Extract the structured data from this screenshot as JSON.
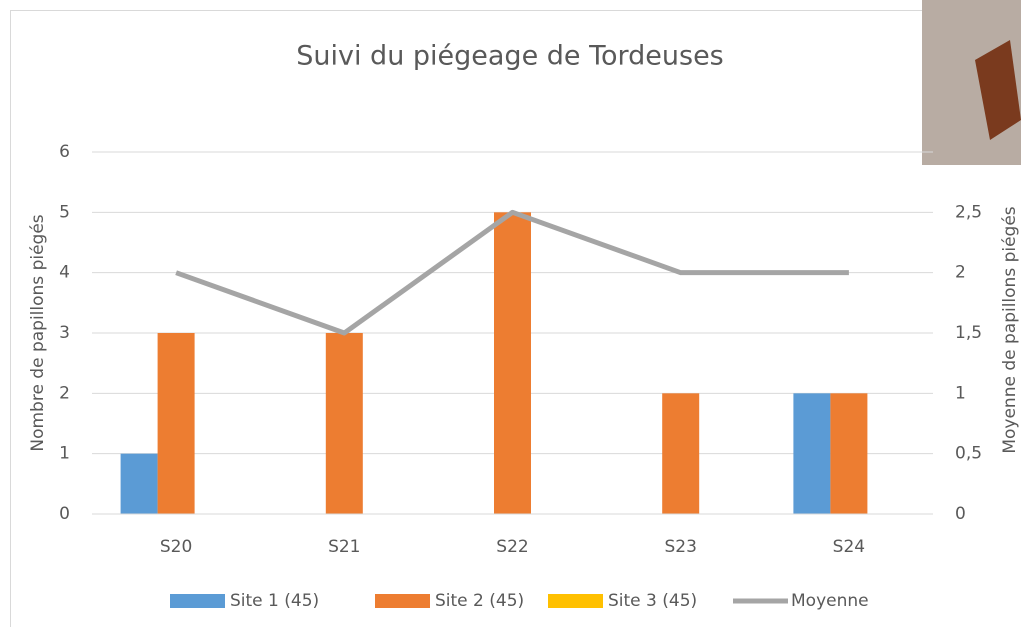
{
  "chart_data": {
    "type": "bar",
    "title": "Suivi du piégeage de Tordeuses",
    "y_label": "Nombre de papillons piégés",
    "y2_label": "Moyenne de papillons piégés",
    "categories": [
      "S20",
      "S21",
      "S22",
      "S23",
      "S24"
    ],
    "series": [
      {
        "name": "Site 1 (45)",
        "color": "#5b9bd5",
        "values": [
          1,
          0,
          0,
          0,
          2
        ]
      },
      {
        "name": "Site 2 (45)",
        "color": "#ed7d31",
        "values": [
          3,
          3,
          5,
          2,
          2
        ]
      },
      {
        "name": "Site 3 (45)",
        "color": "#ffc000",
        "values": [
          0,
          0,
          0,
          0,
          0
        ]
      },
      {
        "name": "Moyenne",
        "color": "#a5a5a5",
        "type": "line",
        "axis": "y2",
        "values": [
          2,
          1.5,
          2.5,
          2,
          2
        ]
      }
    ],
    "ylim": [
      0,
      6
    ],
    "yticks": [
      0,
      1,
      2,
      3,
      4,
      5,
      6
    ],
    "y2lim": [
      0,
      3
    ],
    "y2ticks": [
      0,
      {
        "value": 0.5,
        "label": "0,5"
      },
      1,
      {
        "value": 1.5,
        "label": "1,5"
      },
      2,
      {
        "value": 2.5,
        "label": "2,5"
      }
    ],
    "grid": true
  }
}
